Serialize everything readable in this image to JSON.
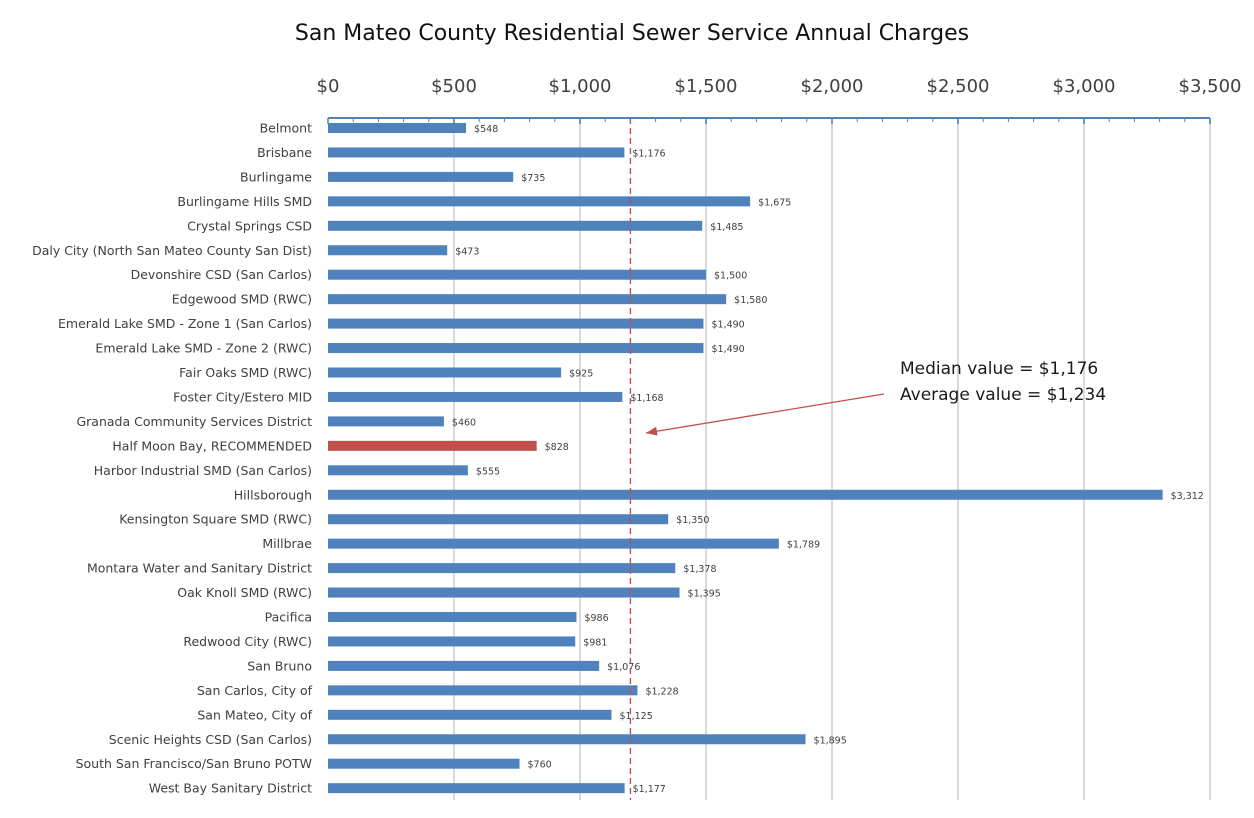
{
  "chart_data": {
    "type": "bar",
    "orientation": "horizontal",
    "title": "San Mateo County Residential Sewer Service Annual Charges",
    "xlim": [
      0,
      3500
    ],
    "xticks": [
      0,
      500,
      1000,
      1500,
      2000,
      2500,
      3000,
      3500
    ],
    "xtick_labels": [
      "$0",
      "$500",
      "$1,000",
      "$1,500",
      "$2,000",
      "$2,500",
      "$3,000",
      "$3,500"
    ],
    "x_axis_position": "top",
    "grid": "vertical",
    "colors": {
      "default": "#4F81BD",
      "highlight": "#C0504D",
      "reference_line": "#C0504D",
      "grid": "#D9D9D9",
      "axis": "#4F81BD"
    },
    "categories": [
      "Belmont",
      "Brisbane",
      "Burlingame",
      "Burlingame Hills SMD",
      "Crystal Springs CSD",
      "Daly City (North San Mateo County San Dist)",
      "Devonshire CSD (San Carlos)",
      "Edgewood SMD (RWC)",
      "Emerald Lake SMD - Zone 1 (San Carlos)",
      "Emerald Lake SMD - Zone 2 (RWC)",
      "Fair Oaks SMD (RWC)",
      "Foster City/Estero MID",
      "Granada Community Services District",
      "Half Moon Bay, RECOMMENDED",
      "Harbor Industrial SMD (San Carlos)",
      "Hillsborough",
      "Kensington Square SMD (RWC)",
      "Millbrae",
      "Montara Water and Sanitary District",
      "Oak Knoll SMD (RWC)",
      "Pacifica",
      "Redwood City (RWC)",
      "San Bruno",
      "San Carlos, City of",
      "San Mateo, City of",
      "Scenic Heights CSD (San Carlos)",
      "South San Francisco/San Bruno POTW",
      "West Bay Sanitary District"
    ],
    "values": [
      548,
      1176,
      735,
      1675,
      1485,
      473,
      1500,
      1580,
      1490,
      1490,
      925,
      1168,
      460,
      828,
      555,
      3312,
      1350,
      1789,
      1378,
      1395,
      986,
      981,
      1076,
      1228,
      1125,
      1895,
      760,
      1177
    ],
    "data_labels": [
      "$548",
      "$1,176",
      "$735",
      "$1,675",
      "$1,485",
      "$473",
      "$1,500",
      "$1,580",
      "$1,490",
      "$1,490",
      "$925",
      "$1,168",
      "$460",
      "$828",
      "$555",
      "$3,312",
      "$1,350",
      "$1,789",
      "$1,378",
      "$1,395",
      "$986",
      "$981",
      "$1,076",
      "$1,228",
      "$1,125",
      "$1,895",
      "$760",
      "$1,177"
    ],
    "highlight_index": 13,
    "reference_line": {
      "value": 1200,
      "style": "dashed"
    },
    "annotations": [
      {
        "text": "Median value = $1,176"
      },
      {
        "text": "Average value = $1,234"
      }
    ]
  }
}
